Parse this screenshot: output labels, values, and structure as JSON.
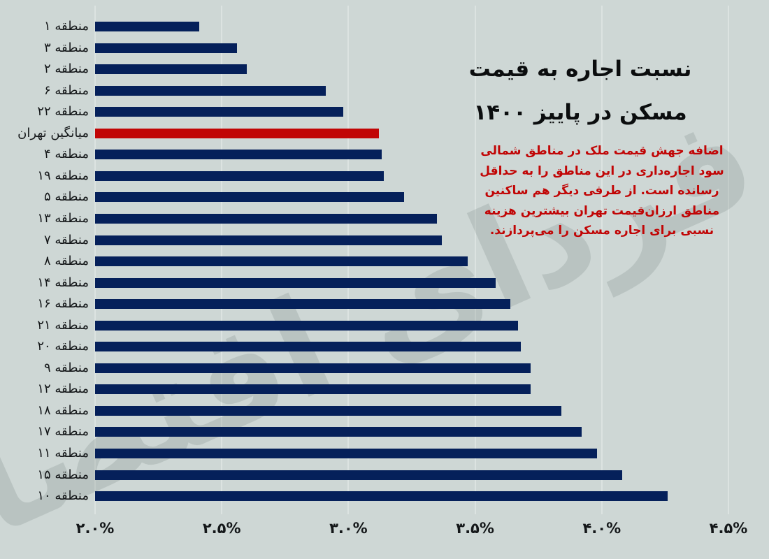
{
  "page": {
    "language": "fa",
    "direction": "rtl"
  },
  "title": {
    "line1": "نسبت اجاره به قیمت",
    "line2": "مسکن در پاییز ۱۴۰۰"
  },
  "annotation": {
    "lines": [
      "اضافه جهش قیمت ملک در مناطق شمالی",
      "سود اجاره‌داری در این مناطق را به حداقل",
      "رسانده است. از طرفی دیگر هم ساکنین",
      "مناطق ارزان‌قیمت تهران بیشترین هزینه",
      "نسبی برای اجاره مسکن را می‌پردازند."
    ]
  },
  "watermark": {
    "text": "فردای اقتصاد"
  },
  "colors": {
    "background": "#ced7d5",
    "gridline": "#dce3e1",
    "bar": "#05205a",
    "highlight_bar": "#c10505",
    "annotation_text": "#c10505",
    "label_text": "#141719",
    "watermark": "#8a9895"
  },
  "chart_data": {
    "type": "bar",
    "orientation": "horizontal",
    "title": "نسبت اجاره به قیمت مسکن در پاییز ۱۴۰۰",
    "xlabel": "",
    "ylabel": "",
    "grid": "vertical",
    "legend": "none",
    "x_axis": {
      "min": 2.0,
      "max": 4.5,
      "tick_step": 0.5,
      "unit": "%",
      "tick_labels": [
        "۲.۰%",
        "۲.۵%",
        "۳.۰%",
        "۳.۵%",
        "۴.۰%",
        "۴.۵%"
      ]
    },
    "rows": [
      {
        "label": "منطقه ۱",
        "value": 2.41,
        "highlight": false
      },
      {
        "label": "منطقه ۳",
        "value": 2.56,
        "highlight": false
      },
      {
        "label": "منطقه ۲",
        "value": 2.6,
        "highlight": false
      },
      {
        "label": "منطقه ۶",
        "value": 2.91,
        "highlight": false
      },
      {
        "label": "منطقه ۲۲",
        "value": 2.98,
        "highlight": false
      },
      {
        "label": "میانگین تهران",
        "value": 3.12,
        "highlight": true
      },
      {
        "label": "منطقه ۴",
        "value": 3.13,
        "highlight": false
      },
      {
        "label": "منطقه ۱۹",
        "value": 3.14,
        "highlight": false
      },
      {
        "label": "منطقه ۵",
        "value": 3.22,
        "highlight": false
      },
      {
        "label": "منطقه ۱۳",
        "value": 3.35,
        "highlight": false
      },
      {
        "label": "منطقه ۷",
        "value": 3.37,
        "highlight": false
      },
      {
        "label": "منطقه ۸",
        "value": 3.47,
        "highlight": false
      },
      {
        "label": "منطقه ۱۴",
        "value": 3.58,
        "highlight": false
      },
      {
        "label": "منطقه ۱۶",
        "value": 3.64,
        "highlight": false
      },
      {
        "label": "منطقه ۲۱",
        "value": 3.67,
        "highlight": false
      },
      {
        "label": "منطقه ۲۰",
        "value": 3.68,
        "highlight": false
      },
      {
        "label": "منطقه ۹",
        "value": 3.72,
        "highlight": false
      },
      {
        "label": "منطقه ۱۲",
        "value": 3.72,
        "highlight": false
      },
      {
        "label": "منطقه ۱۸",
        "value": 3.84,
        "highlight": false
      },
      {
        "label": "منطقه ۱۷",
        "value": 3.92,
        "highlight": false
      },
      {
        "label": "منطقه ۱۱",
        "value": 3.98,
        "highlight": false
      },
      {
        "label": "منطقه ۱۵",
        "value": 4.08,
        "highlight": false
      },
      {
        "label": "منطقه ۱۰",
        "value": 4.26,
        "highlight": false
      }
    ]
  }
}
